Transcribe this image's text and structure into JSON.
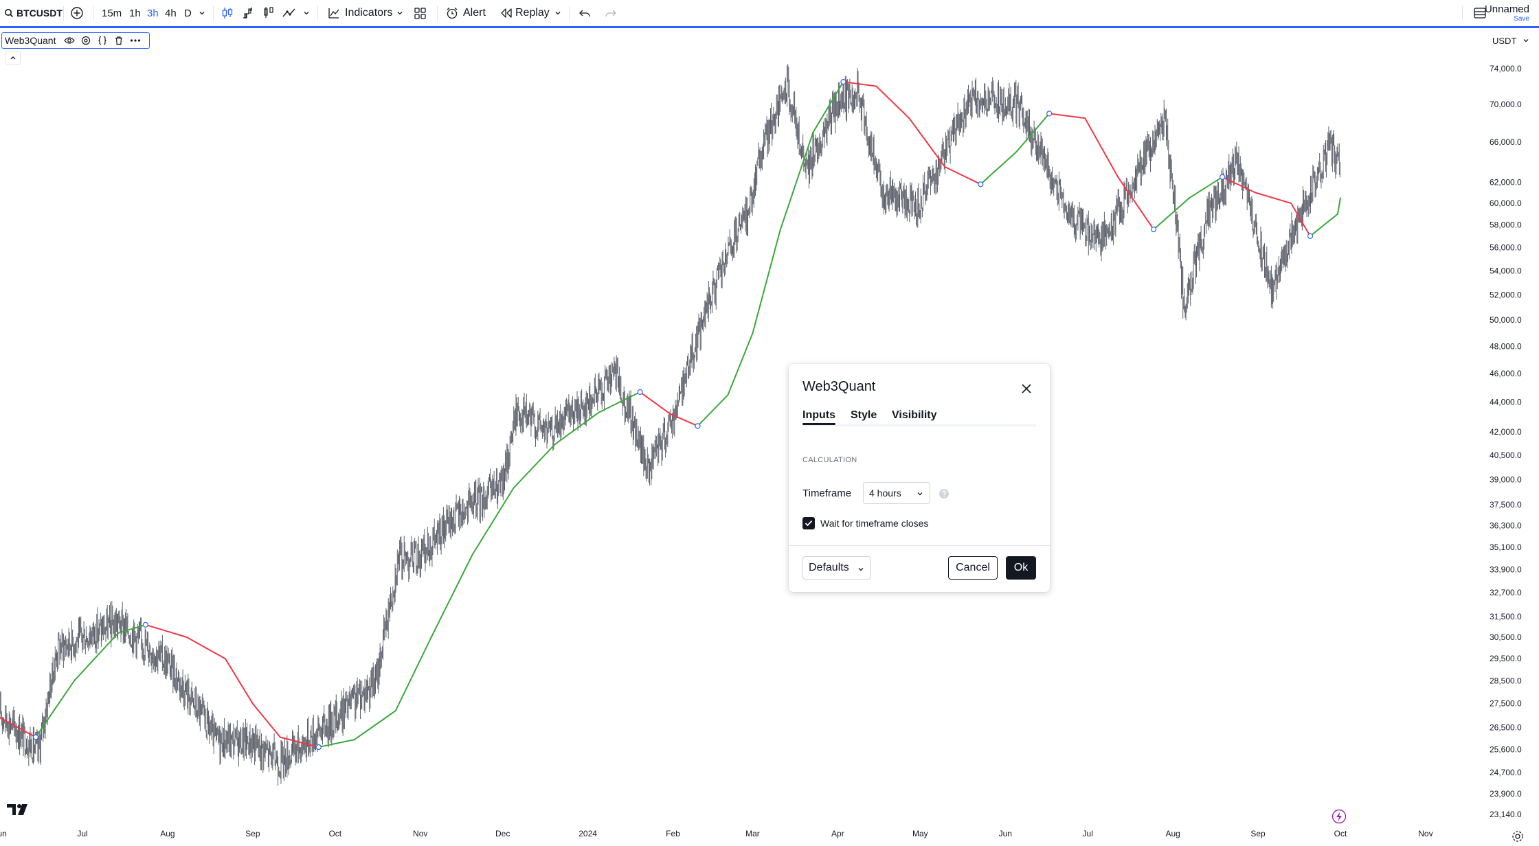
{
  "toolbar": {
    "symbol": "BTCUSDT",
    "timeframes": [
      "15m",
      "1h",
      "3h",
      "4h",
      "D"
    ],
    "active_timeframe": "3h",
    "indicators_label": "Indicators",
    "alert_label": "Alert",
    "replay_label": "Replay",
    "layout_name": "Unnamed",
    "save_label": "Save"
  },
  "legend": {
    "indicator_name": "Web3Quant"
  },
  "currency": "USDT",
  "colors": {
    "accent": "#2962ff",
    "up_trend": "#3aa83a",
    "down_trend": "#f23645",
    "price_bars": "#5d606b",
    "dark_button": "#131722"
  },
  "dialog": {
    "title": "Web3Quant",
    "tabs": [
      "Inputs",
      "Style",
      "Visibility"
    ],
    "active_tab": "Inputs",
    "section": "CALCULATION",
    "timeframe_label": "Timeframe",
    "timeframe_value": "4 hours",
    "wait_label": "Wait for timeframe closes",
    "wait_checked": true,
    "defaults_label": "Defaults",
    "cancel_label": "Cancel",
    "ok_label": "Ok"
  },
  "chart_data": {
    "type": "line",
    "title": "",
    "xlabel": "",
    "ylabel": "",
    "log_scale": true,
    "ylim": [
      22900,
      76000
    ],
    "y_ticks": [
      "74,000.0",
      "70,000.0",
      "66,000.0",
      "62,000.0",
      "60,000.0",
      "58,000.0",
      "56,000.0",
      "54,000.0",
      "52,000.0",
      "50,000.0",
      "48,000.0",
      "46,000.0",
      "44,000.0",
      "42,000.0",
      "40,500.0",
      "39,000.0",
      "37,500.0",
      "36,300.0",
      "35,100.0",
      "33,900.0",
      "32,700.0",
      "31,500.0",
      "30,500.0",
      "29,500.0",
      "28,500.0",
      "27,500.0",
      "26,500.0",
      "25,600.0",
      "24,700.0",
      "23,900.0",
      "23,140.0"
    ],
    "x_ticks": [
      "Jun",
      "Jul",
      "Aug",
      "Sep",
      "Oct",
      "Nov",
      "Dec",
      "2024",
      "Feb",
      "Mar",
      "Apr",
      "May",
      "Jun",
      "Jul",
      "Aug",
      "Sep",
      "Oct",
      "Nov"
    ],
    "x_tick_dates": [
      "2023-06-01",
      "2023-07-01",
      "2023-08-01",
      "2023-09-01",
      "2023-10-01",
      "2023-11-01",
      "2023-12-01",
      "2024-01-01",
      "2024-02-01",
      "2024-03-01",
      "2024-04-01",
      "2024-05-01",
      "2024-06-01",
      "2024-07-01",
      "2024-08-01",
      "2024-09-01",
      "2024-10-01",
      "2024-11-01"
    ],
    "price": {
      "dates": [
        "2023-06-01",
        "2023-06-15",
        "2023-06-22",
        "2023-07-01",
        "2023-07-14",
        "2023-08-01",
        "2023-08-16",
        "2023-08-18",
        "2023-09-01",
        "2023-09-11",
        "2023-10-01",
        "2023-10-16",
        "2023-10-24",
        "2023-11-01",
        "2023-11-15",
        "2023-12-01",
        "2023-12-06",
        "2023-12-18",
        "2024-01-01",
        "2024-01-11",
        "2024-01-23",
        "2024-02-01",
        "2024-02-15",
        "2024-02-28",
        "2024-03-05",
        "2024-03-14",
        "2024-03-20",
        "2024-04-01",
        "2024-04-08",
        "2024-04-17",
        "2024-05-01",
        "2024-05-20",
        "2024-06-05",
        "2024-06-24",
        "2024-07-05",
        "2024-07-14",
        "2024-07-29",
        "2024-08-05",
        "2024-08-14",
        "2024-08-24",
        "2024-09-06",
        "2024-09-13",
        "2024-09-27",
        "2024-10-01"
      ],
      "close": [
        27100,
        25500,
        30000,
        30500,
        31200,
        29300,
        26500,
        26000,
        25900,
        25100,
        26900,
        28500,
        34500,
        34600,
        37000,
        38700,
        43500,
        42000,
        44000,
        46000,
        39500,
        43000,
        52000,
        59000,
        66000,
        72000,
        63000,
        70000,
        71500,
        61000,
        60000,
        70500,
        70000,
        59000,
        56500,
        60000,
        68500,
        51000,
        59000,
        64000,
        52500,
        57000,
        65500,
        63500
      ]
    },
    "series": [
      {
        "name": "Web3Quant",
        "color_rule": "green while rising, red while falling",
        "dates": [
          "2023-06-01",
          "2023-06-14",
          "2023-06-28",
          "2023-07-14",
          "2023-07-24",
          "2023-08-08",
          "2023-08-22",
          "2023-09-01",
          "2023-09-11",
          "2023-09-25",
          "2023-10-08",
          "2023-10-23",
          "2023-11-05",
          "2023-11-20",
          "2023-12-05",
          "2023-12-20",
          "2024-01-05",
          "2024-01-20",
          "2024-01-31",
          "2024-02-10",
          "2024-02-21",
          "2024-03-01",
          "2024-03-11",
          "2024-03-23",
          "2024-04-03",
          "2024-04-15",
          "2024-04-27",
          "2024-05-10",
          "2024-05-23",
          "2024-06-05",
          "2024-06-17",
          "2024-06-30",
          "2024-07-12",
          "2024-07-25",
          "2024-08-07",
          "2024-08-19",
          "2024-08-31",
          "2024-09-13",
          "2024-09-20",
          "2024-09-30",
          "2024-10-01"
        ],
        "values": [
          26900,
          26100,
          28500,
          30700,
          31100,
          30500,
          29500,
          27500,
          26100,
          25700,
          26000,
          27200,
          30500,
          34700,
          38500,
          41200,
          43300,
          44700,
          43200,
          42400,
          44500,
          49000,
          57500,
          67000,
          72500,
          72000,
          68500,
          63500,
          61800,
          65000,
          69000,
          68500,
          62500,
          57600,
          60500,
          62500,
          61000,
          60000,
          57000,
          59000,
          60500
        ]
      }
    ]
  }
}
